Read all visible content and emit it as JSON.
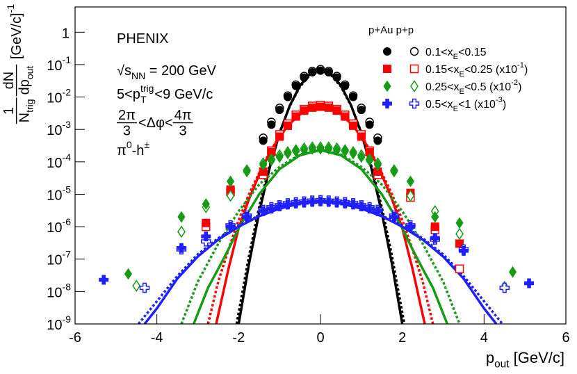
{
  "chart_data": {
    "type": "scatter",
    "ylog": true,
    "xlim": [
      -6,
      6
    ],
    "ylim": [
      1e-09,
      6
    ],
    "xticks": [
      -6,
      -4,
      -2,
      0,
      2,
      4,
      6
    ],
    "yticks": [
      {
        "value": 1e-09,
        "label": "10",
        "sup": "-9"
      },
      {
        "value": 1e-08,
        "label": "10",
        "sup": "-8"
      },
      {
        "value": 1e-07,
        "label": "10",
        "sup": "-7"
      },
      {
        "value": 1e-06,
        "label": "10",
        "sup": "-6"
      },
      {
        "value": 1e-05,
        "label": "10",
        "sup": "-5"
      },
      {
        "value": 0.0001,
        "label": "10",
        "sup": "-4"
      },
      {
        "value": 0.001,
        "label": "10",
        "sup": "-3"
      },
      {
        "value": 0.01,
        "label": "10",
        "sup": "-2"
      },
      {
        "value": 0.1,
        "label": "10",
        "sup": "-1"
      },
      1
    ],
    "xlabel": [
      {
        "t": "p"
      },
      {
        "t": "out",
        "s": "sub"
      },
      {
        "t": " [GeV/c]"
      }
    ],
    "ylabel": [
      {
        "num": [
          {
            "t": "1"
          }
        ],
        "den": [
          {
            "t": "N"
          },
          {
            "t": "trig",
            "s": "sub"
          }
        ]
      },
      {
        "num": [
          {
            "t": "dN"
          }
        ],
        "den": [
          {
            "t": "dp"
          },
          {
            "t": "out",
            "s": "sub"
          }
        ]
      },
      {
        "t": " [GeV/c]"
      },
      {
        "t": "-1",
        "s": "sup"
      }
    ],
    "annotations": [
      [
        {
          "t": "PHENIX"
        }
      ],
      [
        {
          "t": "√s"
        },
        {
          "t": "NN",
          "s": "sub"
        },
        {
          "t": " = 200 GeV"
        }
      ],
      [
        {
          "t": "5<p"
        },
        {
          "sup": "trig",
          "sub": "T"
        },
        {
          "t": "<9 GeV/c"
        }
      ],
      [
        {
          "num": [
            {
              "t": "2π"
            }
          ],
          "den": [
            {
              "t": "3"
            }
          ]
        },
        {
          "t": "<Δφ<"
        },
        {
          "num": [
            {
              "t": "4π"
            }
          ],
          "den": [
            {
              "t": "3"
            }
          ]
        }
      ],
      [
        {
          "t": "π"
        },
        {
          "t": "0",
          "s": "sup"
        },
        {
          "t": "-h"
        },
        {
          "t": "±",
          "s": "sup"
        }
      ]
    ],
    "legend_title": "p+Au p+p",
    "groups": [
      {
        "name": [
          {
            "t": "0.1<x"
          },
          {
            "t": "E",
            "s": "sub"
          },
          {
            "t": "<0.15"
          }
        ],
        "color": "#000000",
        "marker": "circle",
        "pAu": {
          "x": [
            -1.4,
            -1.2,
            -1.0,
            -0.8,
            -0.6,
            -0.4,
            -0.2,
            0,
            0.2,
            0.4,
            0.6,
            0.8,
            1.0,
            1.2,
            1.4
          ],
          "values": [
            0.00045,
            0.0014,
            0.004,
            0.01,
            0.022,
            0.04,
            0.058,
            0.065,
            0.058,
            0.04,
            0.022,
            0.01,
            0.004,
            0.0014,
            0.00045
          ]
        },
        "pp": {
          "x": [
            -1.4,
            -1.2,
            -1.0,
            -0.8,
            -0.6,
            -0.4,
            -0.2,
            0,
            0.2,
            0.4,
            0.6,
            0.8,
            1.0,
            1.2,
            1.4
          ],
          "values": [
            0.00055,
            0.0017,
            0.0046,
            0.011,
            0.024,
            0.044,
            0.063,
            0.072,
            0.063,
            0.044,
            0.024,
            0.011,
            0.0046,
            0.0017,
            0.00055
          ]
        },
        "fit_pAu": {
          "x": [
            -2,
            -1.75,
            -1.5,
            -1.25,
            -1,
            -0.75,
            -0.5,
            -0.25,
            0,
            0.25,
            0.5,
            0.75,
            1,
            1.25,
            1.5,
            1.75,
            2
          ],
          "values": [
            1e-09,
            6.9e-08,
            2.7e-06,
            6e-05,
            0.00077,
            0.0055,
            0.0226,
            0.0528,
            0.07,
            0.0528,
            0.0226,
            0.0055,
            0.00077,
            6e-05,
            2.7e-06,
            6.9e-08,
            1e-09
          ]
        },
        "fit_pp": {
          "x": [
            -2.05,
            -1.75,
            -1.5,
            -1.25,
            -1,
            -0.75,
            -0.5,
            -0.25,
            0,
            0.25,
            0.5,
            0.75,
            1,
            1.25,
            1.5,
            1.75,
            2.05
          ],
          "values": [
            1e-09,
            1.2e-07,
            4e-06,
            7e-05,
            0.0008,
            0.0053,
            0.021,
            0.049,
            0.065,
            0.049,
            0.021,
            0.0053,
            0.0008,
            7e-05,
            4e-06,
            1.2e-07,
            1e-09
          ]
        }
      },
      {
        "name": [
          {
            "t": "0.15<x"
          },
          {
            "t": "E",
            "s": "sub"
          },
          {
            "t": "<0.25 (x10"
          },
          {
            "t": "-1",
            "s": "sup"
          },
          {
            "t": ")"
          }
        ],
        "color": "#ff0000",
        "marker": "square",
        "pAu": {
          "x": [
            -2.8,
            -2.2,
            -1.4,
            -1.2,
            -1.0,
            -0.8,
            -0.6,
            -0.4,
            -0.2,
            0,
            0.2,
            0.4,
            0.6,
            0.8,
            1.0,
            1.2,
            1.4,
            2.2,
            2.8,
            3.4
          ],
          "values": [
            1.3e-06,
            1.4e-05,
            5e-05,
            0.0002,
            0.0006,
            0.0013,
            0.0025,
            0.0038,
            0.0047,
            0.005,
            0.0047,
            0.0038,
            0.0025,
            0.0013,
            0.0006,
            0.0002,
            5e-05,
            1.1e-05,
            1e-06,
            3e-07
          ]
        },
        "pp": {
          "x": [
            -2.8,
            -2.2,
            -1.4,
            -1.2,
            -1.0,
            -0.8,
            -0.6,
            -0.4,
            -0.2,
            0,
            0.2,
            0.4,
            0.6,
            0.8,
            1.0,
            1.2,
            1.4,
            2.2,
            2.8,
            3.4
          ],
          "values": [
            1e-06,
            1.2e-05,
            4e-05,
            0.00022,
            0.0007,
            0.0015,
            0.0028,
            0.0042,
            0.0053,
            0.0056,
            0.0053,
            0.0042,
            0.0028,
            0.0015,
            0.0007,
            0.00022,
            4e-05,
            8e-06,
            8e-07,
            5e-08
          ]
        },
        "fit_pAu": {
          "x": [
            -2.55,
            -2.25,
            -2,
            -1.75,
            -1.5,
            -1.25,
            -1,
            -0.75,
            -0.5,
            -0.25,
            0,
            0.25,
            0.5,
            0.75,
            1,
            1.25,
            1.5,
            1.75,
            2,
            2.25,
            2.55
          ],
          "values": [
            1e-09,
            5e-08,
            9e-07,
            7e-06,
            4e-05,
            0.00018,
            0.0006,
            0.0015,
            0.0029,
            0.0043,
            0.005,
            0.0043,
            0.0029,
            0.0015,
            0.0006,
            0.00018,
            4e-05,
            7e-06,
            9e-07,
            5e-08,
            1e-09
          ]
        },
        "fit_pp": {
          "x": [
            -2.75,
            -2.5,
            -2.25,
            -2,
            -1.75,
            -1.5,
            -1.25,
            -1,
            -0.75,
            -0.5,
            -0.25,
            0,
            0.25,
            0.5,
            0.75,
            1,
            1.25,
            1.5,
            1.75,
            2,
            2.25,
            2.5,
            2.75
          ],
          "values": [
            1e-09,
            2e-08,
            2e-07,
            1.6e-06,
            1e-05,
            4.5e-05,
            0.00019,
            0.00062,
            0.0015,
            0.003,
            0.0044,
            0.0052,
            0.0044,
            0.003,
            0.0015,
            0.00062,
            0.00019,
            4.5e-05,
            1e-05,
            1.6e-06,
            2e-07,
            2e-08,
            1e-09
          ]
        }
      },
      {
        "name": [
          {
            "t": "0.25<x"
          },
          {
            "t": "E",
            "s": "sub"
          },
          {
            "t": "<0.5 (x10"
          },
          {
            "t": "-2",
            "s": "sup"
          },
          {
            "t": ")"
          }
        ],
        "color": "#169b16",
        "marker": "diamond",
        "pAu": {
          "x": [
            -4.7,
            -3.4,
            -2.8,
            -2.2,
            -1.8,
            -1.4,
            -1.2,
            -1.0,
            -0.8,
            -0.6,
            -0.4,
            -0.2,
            0,
            0.2,
            0.4,
            0.6,
            0.8,
            1.0,
            1.2,
            1.4,
            1.8,
            2.2,
            2.8,
            3.4,
            4.7
          ],
          "values": [
            3.5e-08,
            2e-06,
            5e-06,
            2.5e-05,
            5e-05,
            8e-05,
            0.00011,
            0.00014,
            0.00018,
            0.00021,
            0.00023,
            0.00025,
            0.00025,
            0.00025,
            0.00023,
            0.00021,
            0.00018,
            0.00014,
            0.00011,
            8e-05,
            5e-05,
            2.5e-05,
            2e-06,
            1.3e-06,
            4e-08
          ]
        },
        "pp": {
          "x": [
            -4.5,
            -3.4,
            -2.8,
            -2.2,
            -1.8,
            -1.4,
            -1.2,
            -1.0,
            -0.8,
            -0.6,
            -0.4,
            -0.2,
            0,
            0.2,
            0.4,
            0.6,
            0.8,
            1.0,
            1.2,
            1.4,
            1.8,
            2.2,
            2.8,
            3.4,
            4.5
          ],
          "values": [
            1.5e-08,
            7e-07,
            4e-06,
            9e-06,
            5.5e-05,
            9e-05,
            0.00012,
            0.00016,
            0.0002,
            0.00023,
            0.00026,
            0.00028,
            0.00028,
            0.00028,
            0.00026,
            0.00023,
            0.0002,
            0.00016,
            0.00012,
            9e-05,
            5.5e-05,
            9e-06,
            3e-06,
            6e-07,
            1.4e-08
          ]
        },
        "fit_pAu": {
          "x": [
            -3.1,
            -2.75,
            -2.5,
            -2.25,
            -2,
            -1.5,
            -1,
            -0.5,
            0,
            0.5,
            1,
            1.5,
            2,
            2.25,
            2.5,
            2.75,
            3.1
          ],
          "values": [
            1e-09,
            1.3e-08,
            5e-08,
            2e-07,
            9e-07,
            1e-05,
            6e-05,
            0.00016,
            0.00023,
            0.00016,
            6e-05,
            1e-05,
            9e-07,
            2e-07,
            5e-08,
            1.3e-08,
            1e-09
          ]
        },
        "fit_pp": {
          "x": [
            -3.4,
            -3,
            -2.5,
            -2,
            -1.5,
            -1,
            -0.5,
            0,
            0.5,
            1,
            1.5,
            2,
            2.5,
            3,
            3.4
          ],
          "values": [
            1e-09,
            2e-08,
            3e-07,
            3e-06,
            2e-05,
            7e-05,
            0.00017,
            0.00024,
            0.00017,
            7e-05,
            2e-05,
            3e-06,
            3e-07,
            2e-08,
            1e-09
          ]
        }
      },
      {
        "name": [
          {
            "t": "0.5<x"
          },
          {
            "t": "E",
            "s": "sub"
          },
          {
            "t": "<1 (x10"
          },
          {
            "t": "-3",
            "s": "sup"
          },
          {
            "t": ")"
          }
        ],
        "color": "#1f1fff",
        "marker": "cross",
        "pAu": {
          "x": [
            -5.3,
            -3.4,
            -2.8,
            -2.2,
            -1.8,
            -1.4,
            -1.2,
            -1.0,
            -0.8,
            -0.6,
            -0.4,
            -0.2,
            0,
            0.2,
            0.4,
            0.6,
            0.8,
            1.0,
            1.2,
            1.4,
            1.8,
            2.2,
            2.8,
            3.5,
            5.1
          ],
          "values": [
            2.3e-08,
            2.2e-07,
            5e-07,
            1e-06,
            2e-06,
            3e-06,
            3.6e-06,
            4.2e-06,
            4.8e-06,
            5.2e-06,
            5.5e-06,
            5.8e-06,
            6e-06,
            5.8e-06,
            5.5e-06,
            5.2e-06,
            4.8e-06,
            4.2e-06,
            3.6e-06,
            3e-06,
            2e-06,
            1e-06,
            4.5e-07,
            1.8e-07,
            1.8e-08
          ]
        },
        "pp": {
          "x": [
            -4.3,
            -3.4,
            -2.8,
            -2.2,
            -1.8,
            -1.4,
            -1.2,
            -1.0,
            -0.8,
            -0.6,
            -0.4,
            -0.2,
            0,
            0.2,
            0.4,
            0.6,
            0.8,
            1.0,
            1.2,
            1.4,
            1.8,
            2.2,
            2.8,
            3.5,
            4.5
          ],
          "values": [
            1.3e-08,
            2e-07,
            3.5e-07,
            1.1e-06,
            2.2e-06,
            3.3e-06,
            4e-06,
            4.6e-06,
            5.3e-06,
            5.7e-06,
            6e-06,
            6.4e-06,
            6.6e-06,
            6.4e-06,
            6e-06,
            5.7e-06,
            5.3e-06,
            4.6e-06,
            4e-06,
            3.3e-06,
            2.2e-06,
            1.1e-06,
            4e-07,
            2e-07,
            1.3e-08
          ]
        },
        "fit_pAu": {
          "x": [
            -4.3,
            -4,
            -3.5,
            -3,
            -2.5,
            -2,
            -1.5,
            -1,
            -0.5,
            0,
            0.5,
            1,
            1.5,
            2,
            2.5,
            3,
            3.5,
            4,
            4.3
          ],
          "values": [
            1e-09,
            3e-09,
            2.5e-08,
            1.2e-07,
            4e-07,
            1e-06,
            2.1e-06,
            3.6e-06,
            5.2e-06,
            6e-06,
            5.2e-06,
            3.6e-06,
            2.1e-06,
            1e-06,
            4e-07,
            1.2e-07,
            2.5e-08,
            3e-09,
            1e-09
          ]
        },
        "fit_pp": {
          "x": [
            -4.45,
            -4,
            -3.5,
            -3,
            -2.5,
            -2,
            -1.5,
            -1,
            -0.5,
            0,
            0.5,
            1,
            1.5,
            2,
            2.5,
            3,
            3.5,
            4,
            4.45
          ],
          "values": [
            1e-09,
            5e-09,
            3e-08,
            1.4e-07,
            4.4e-07,
            1.1e-06,
            2.2e-06,
            3.7e-06,
            5.3e-06,
            6.1e-06,
            5.3e-06,
            3.7e-06,
            2.2e-06,
            1.1e-06,
            4.4e-07,
            1.4e-07,
            3e-08,
            5e-09,
            1e-09
          ]
        }
      }
    ]
  }
}
